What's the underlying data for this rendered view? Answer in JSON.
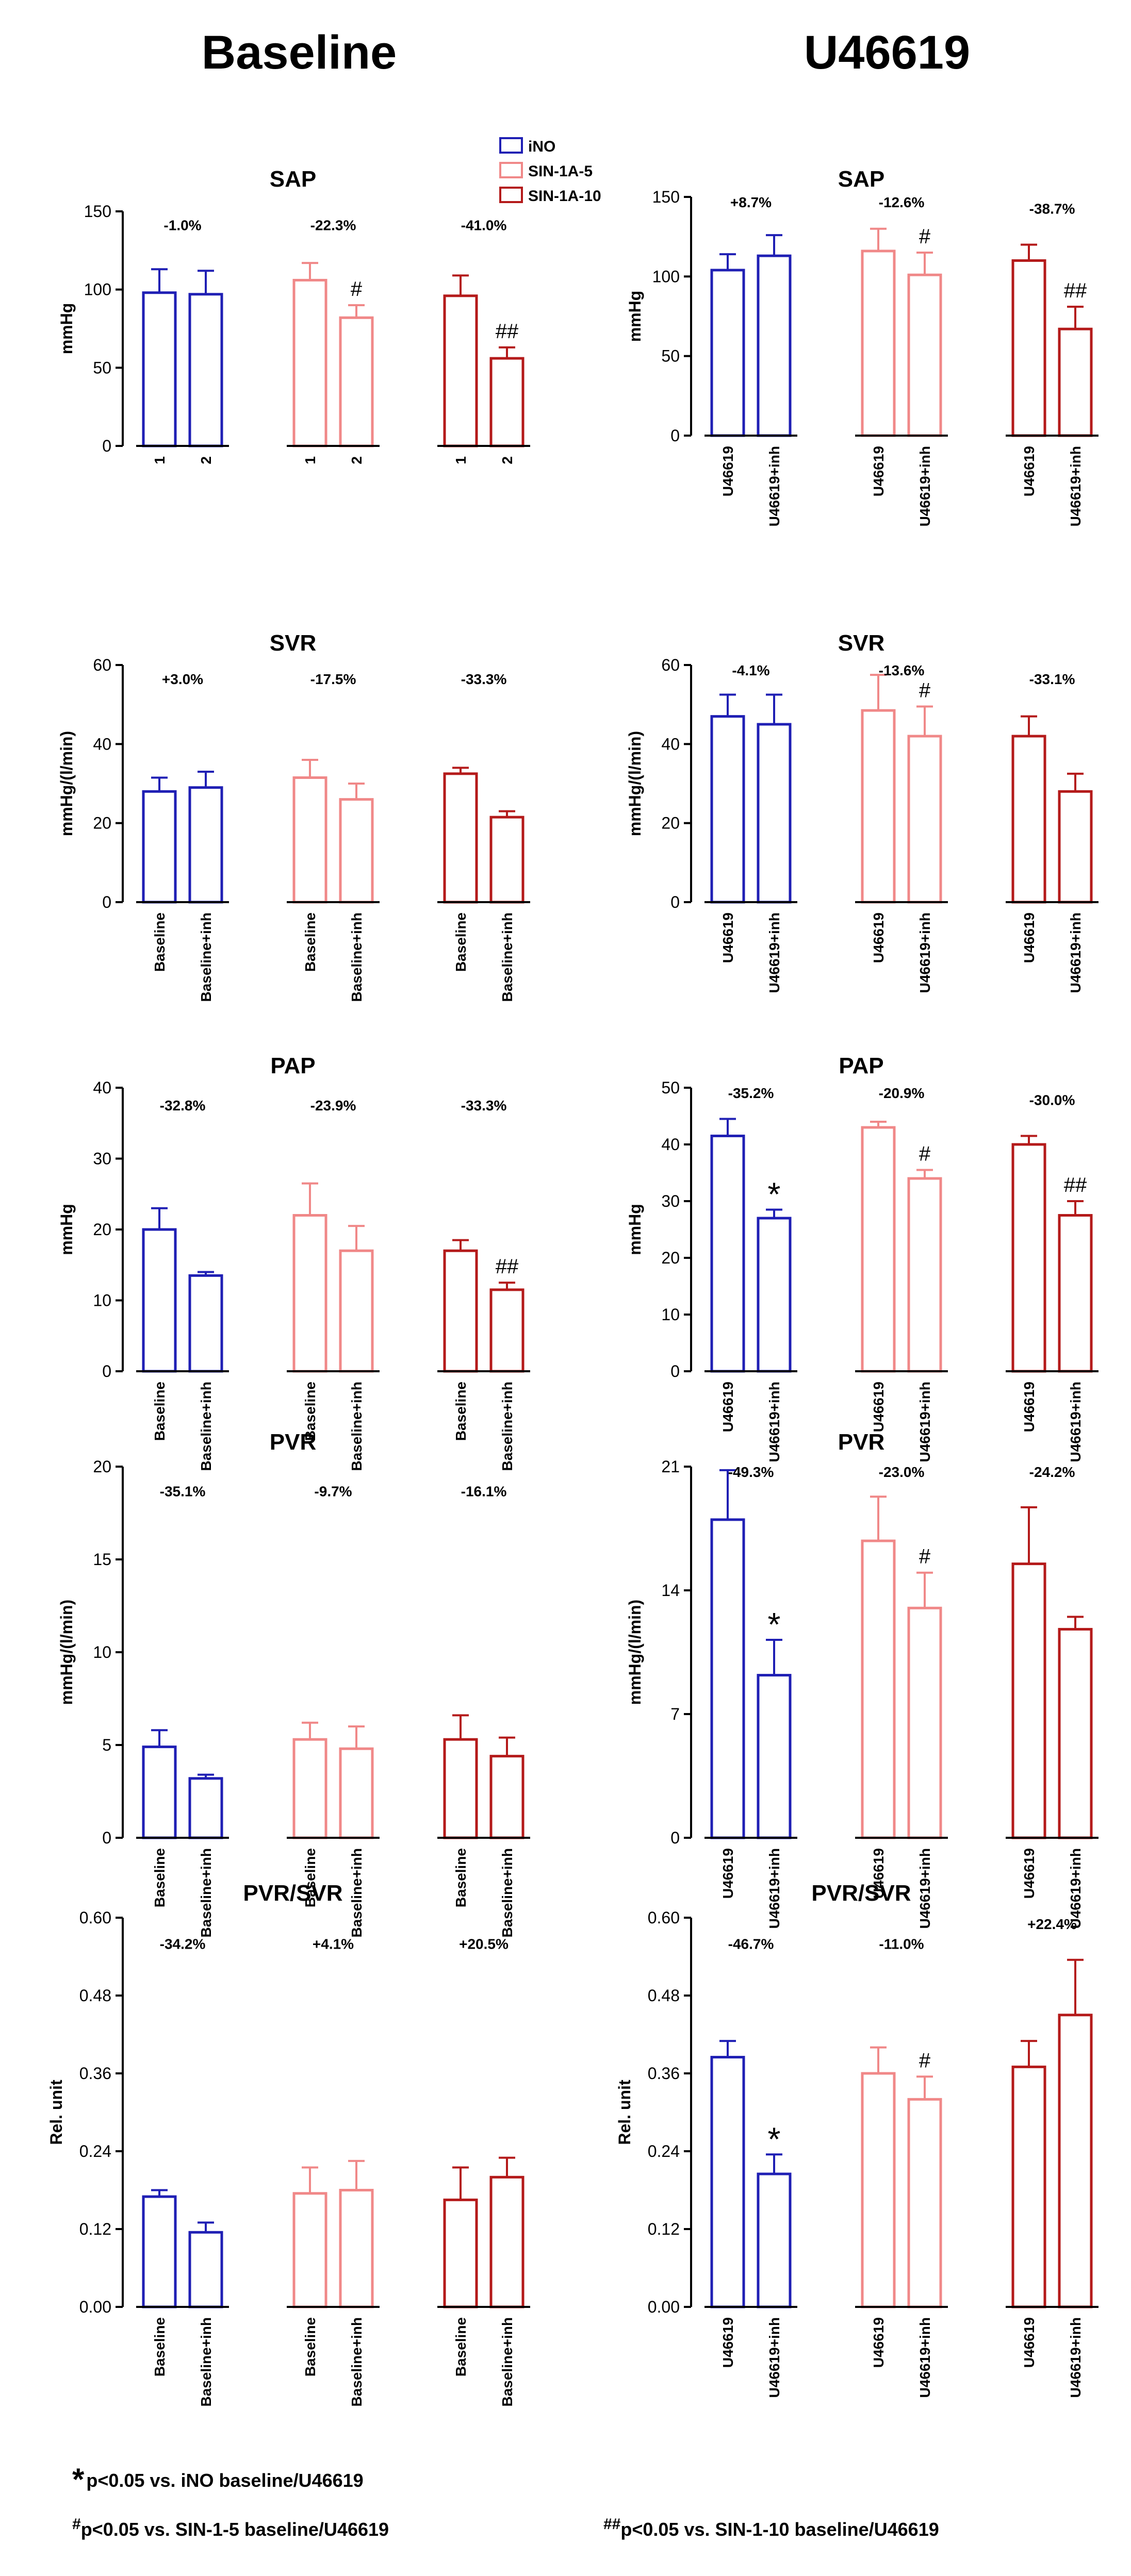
{
  "column_titles": [
    "Baseline",
    "U46619"
  ],
  "legend": [
    {
      "label": "iNO",
      "color": "#1f1fb4"
    },
    {
      "label": "SIN-1A-5",
      "color": "#f08888"
    },
    {
      "label": "SIN-1A-10",
      "color": "#b41a1a"
    }
  ],
  "colors": {
    "ino": "#1f1fb4",
    "sin5": "#f08888",
    "sin10": "#b41a1a"
  },
  "footnotes": {
    "star": {
      "symbol": "*",
      "text": "p<0.05 vs. iNO baseline/U46619"
    },
    "hash": {
      "symbol": "#",
      "text": "p<0.05 vs. SIN-1-5 baseline/U46619"
    },
    "hashhash": {
      "symbol": "##",
      "text": "p<0.05 vs. SIN-1-10 baseline/U46619"
    }
  },
  "chart_data": [
    {
      "type": "bar",
      "column": "Baseline",
      "title": "SAP",
      "ylabel": "mmHg",
      "ylim": [
        0,
        150
      ],
      "yticks": [
        "0",
        "50",
        "100",
        "150"
      ],
      "categories": [
        "1",
        "2",
        "1",
        "2",
        "1",
        "2"
      ],
      "groups": [
        {
          "name": "iNO",
          "values": [
            98,
            97
          ],
          "errors": [
            15,
            15
          ],
          "pct": "-1.0%",
          "marks": [
            "",
            ""
          ]
        },
        {
          "name": "SIN-1A-5",
          "values": [
            106,
            82
          ],
          "errors": [
            11,
            8
          ],
          "pct": "-22.3%",
          "marks": [
            "",
            "#"
          ]
        },
        {
          "name": "SIN-1A-10",
          "values": [
            96,
            56
          ],
          "errors": [
            13,
            7
          ],
          "pct": "-41.0%",
          "marks": [
            "",
            "##"
          ]
        }
      ]
    },
    {
      "type": "bar",
      "column": "U46619",
      "title": "SAP",
      "ylabel": "mmHg",
      "ylim": [
        0,
        150
      ],
      "yticks": [
        "0",
        "50",
        "100",
        "150"
      ],
      "categories": [
        "U46619",
        "U46619+inh",
        "U46619",
        "U46619+inh",
        "U46619",
        "U46619+inh"
      ],
      "groups": [
        {
          "name": "iNO",
          "values": [
            104,
            113
          ],
          "errors": [
            10,
            13
          ],
          "pct": "+8.7%",
          "marks": [
            "",
            ""
          ]
        },
        {
          "name": "SIN-1A-5",
          "values": [
            116,
            101
          ],
          "errors": [
            14,
            14
          ],
          "pct": "-12.6%",
          "marks": [
            "",
            "#"
          ]
        },
        {
          "name": "SIN-1A-10",
          "values": [
            110,
            67
          ],
          "errors": [
            10,
            14
          ],
          "pct": "-38.7%",
          "marks": [
            "",
            "##"
          ]
        }
      ]
    },
    {
      "type": "bar",
      "column": "Baseline",
      "title": "SVR",
      "ylabel": "mmHg/(l/min)",
      "ylim": [
        0,
        60
      ],
      "yticks": [
        "0",
        "20",
        "40",
        "60"
      ],
      "categories": [
        "Baseline",
        "Baseline+inh",
        "Baseline",
        "Baseline+inh",
        "Baseline",
        "Baseline+inh"
      ],
      "groups": [
        {
          "name": "iNO",
          "values": [
            28,
            29
          ],
          "errors": [
            3.5,
            4
          ],
          "pct": "+3.0%",
          "marks": [
            "",
            ""
          ]
        },
        {
          "name": "SIN-1A-5",
          "values": [
            31.5,
            26
          ],
          "errors": [
            4.5,
            4
          ],
          "pct": "-17.5%",
          "marks": [
            "",
            ""
          ]
        },
        {
          "name": "SIN-1A-10",
          "values": [
            32.5,
            21.5
          ],
          "errors": [
            1.5,
            1.5
          ],
          "pct": "-33.3%",
          "marks": [
            "",
            ""
          ]
        }
      ]
    },
    {
      "type": "bar",
      "column": "U46619",
      "title": "SVR",
      "ylabel": "mmHg/(l/min)",
      "ylim": [
        0,
        60
      ],
      "yticks": [
        "0",
        "20",
        "40",
        "60"
      ],
      "categories": [
        "U46619",
        "U46619+inh",
        "U46619",
        "U46619+inh",
        "U46619",
        "U46619+inh"
      ],
      "groups": [
        {
          "name": "iNO",
          "values": [
            47,
            45
          ],
          "errors": [
            5.5,
            7.5
          ],
          "pct": "-4.1%",
          "marks": [
            "",
            ""
          ]
        },
        {
          "name": "SIN-1A-5",
          "values": [
            48.5,
            42
          ],
          "errors": [
            9,
            7.5
          ],
          "pct": "-13.6%",
          "marks": [
            "",
            "#"
          ]
        },
        {
          "name": "SIN-1A-10",
          "values": [
            42,
            28
          ],
          "errors": [
            5,
            4.5
          ],
          "pct": "-33.1%",
          "marks": [
            "",
            ""
          ]
        }
      ]
    },
    {
      "type": "bar",
      "column": "Baseline",
      "title": "PAP",
      "ylabel": "mmHg",
      "ylim": [
        0,
        40
      ],
      "yticks": [
        "0",
        "10",
        "20",
        "30",
        "40"
      ],
      "categories": [
        "Baseline",
        "Baseline+inh",
        "Baseline",
        "Baseline+inh",
        "Baseline",
        "Baseline+inh"
      ],
      "groups": [
        {
          "name": "iNO",
          "values": [
            20,
            13.5
          ],
          "errors": [
            3,
            0.5
          ],
          "pct": "-32.8%",
          "marks": [
            "",
            ""
          ]
        },
        {
          "name": "SIN-1A-5",
          "values": [
            22,
            17
          ],
          "errors": [
            4.5,
            3.5
          ],
          "pct": "-23.9%",
          "marks": [
            "",
            ""
          ]
        },
        {
          "name": "SIN-1A-10",
          "values": [
            17,
            11.5
          ],
          "errors": [
            1.5,
            1
          ],
          "pct": "-33.3%",
          "marks": [
            "",
            "##"
          ]
        }
      ]
    },
    {
      "type": "bar",
      "column": "U46619",
      "title": "PAP",
      "ylabel": "mmHg",
      "ylim": [
        0,
        50
      ],
      "yticks": [
        "0",
        "10",
        "20",
        "30",
        "40",
        "50"
      ],
      "categories": [
        "U46619",
        "U46619+inh",
        "U46619",
        "U46619+inh",
        "U46619",
        "U46619+inh"
      ],
      "groups": [
        {
          "name": "iNO",
          "values": [
            41.5,
            27
          ],
          "errors": [
            3,
            1.5
          ],
          "pct": "-35.2%",
          "marks": [
            "",
            "*"
          ]
        },
        {
          "name": "SIN-1A-5",
          "values": [
            43,
            34
          ],
          "errors": [
            1,
            1.5
          ],
          "pct": "-20.9%",
          "marks": [
            "",
            "#"
          ]
        },
        {
          "name": "SIN-1A-10",
          "values": [
            40,
            27.5
          ],
          "errors": [
            1.5,
            2.5
          ],
          "pct": "-30.0%",
          "marks": [
            "",
            "##"
          ]
        }
      ]
    },
    {
      "type": "bar",
      "column": "Baseline",
      "title": "PVR",
      "ylabel": "mmHg/(l/min)",
      "ylim": [
        0,
        20
      ],
      "yticks": [
        "0",
        "5",
        "10",
        "15",
        "20"
      ],
      "categories": [
        "Baseline",
        "Baseline+inh",
        "Baseline",
        "Baseline+inh",
        "Baseline",
        "Baseline+inh"
      ],
      "groups": [
        {
          "name": "iNO",
          "values": [
            4.9,
            3.2
          ],
          "errors": [
            0.9,
            0.2
          ],
          "pct": "-35.1%",
          "marks": [
            "",
            ""
          ]
        },
        {
          "name": "SIN-1A-5",
          "values": [
            5.3,
            4.8
          ],
          "errors": [
            0.9,
            1.2
          ],
          "pct": "-9.7%",
          "marks": [
            "",
            ""
          ]
        },
        {
          "name": "SIN-1A-10",
          "values": [
            5.3,
            4.4
          ],
          "errors": [
            1.3,
            1
          ],
          "pct": "-16.1%",
          "marks": [
            "",
            ""
          ]
        }
      ]
    },
    {
      "type": "bar",
      "column": "U46619",
      "title": "PVR",
      "ylabel": "mmHg/(l/min)",
      "ylim": [
        0,
        21
      ],
      "yticks": [
        "0",
        "7",
        "14",
        "21"
      ],
      "categories": [
        "U46619",
        "U46619+inh",
        "U46619",
        "U46619+inh",
        "U46619",
        "U46619+inh"
      ],
      "groups": [
        {
          "name": "iNO",
          "values": [
            18,
            9.2
          ],
          "errors": [
            2.8,
            2
          ],
          "pct": "-49.3%",
          "marks": [
            "",
            "*"
          ]
        },
        {
          "name": "SIN-1A-5",
          "values": [
            16.8,
            13
          ],
          "errors": [
            2.5,
            2
          ],
          "pct": "-23.0%",
          "marks": [
            "",
            "#"
          ]
        },
        {
          "name": "SIN-1A-10",
          "values": [
            15.5,
            11.8
          ],
          "errors": [
            3.2,
            0.7
          ],
          "pct": "-24.2%",
          "marks": [
            "",
            ""
          ]
        }
      ]
    },
    {
      "type": "bar",
      "column": "Baseline",
      "title": "PVR/SVR",
      "ylabel": "Rel. unit",
      "ylim": [
        0,
        0.6
      ],
      "yticks": [
        "0.00",
        "0.12",
        "0.24",
        "0.36",
        "0.48",
        "0.60"
      ],
      "categories": [
        "Baseline",
        "Baseline+inh",
        "Baseline",
        "Baseline+inh",
        "Baseline",
        "Baseline+inh"
      ],
      "groups": [
        {
          "name": "iNO",
          "values": [
            0.17,
            0.115
          ],
          "errors": [
            0.01,
            0.015
          ],
          "pct": "-34.2%",
          "marks": [
            "",
            ""
          ]
        },
        {
          "name": "SIN-1A-5",
          "values": [
            0.175,
            0.18
          ],
          "errors": [
            0.04,
            0.045
          ],
          "pct": "+4.1%",
          "marks": [
            "",
            ""
          ]
        },
        {
          "name": "SIN-1A-10",
          "values": [
            0.165,
            0.2
          ],
          "errors": [
            0.05,
            0.03
          ],
          "pct": "+20.5%",
          "marks": [
            "",
            ""
          ]
        }
      ]
    },
    {
      "type": "bar",
      "column": "U46619",
      "title": "PVR/SVR",
      "ylabel": "Rel. unit",
      "ylim": [
        0,
        0.6
      ],
      "yticks": [
        "0.00",
        "0.12",
        "0.24",
        "0.36",
        "0.48",
        "0.60"
      ],
      "categories": [
        "U46619",
        "U46619+inh",
        "U46619",
        "U46619+inh",
        "U46619",
        "U46619+inh"
      ],
      "groups": [
        {
          "name": "iNO",
          "values": [
            0.385,
            0.205
          ],
          "errors": [
            0.025,
            0.03
          ],
          "pct": "-46.7%",
          "marks": [
            "",
            "*"
          ]
        },
        {
          "name": "SIN-1A-5",
          "values": [
            0.36,
            0.32
          ],
          "errors": [
            0.04,
            0.035
          ],
          "pct": "-11.0%",
          "marks": [
            "",
            "#"
          ]
        },
        {
          "name": "SIN-1A-10",
          "values": [
            0.37,
            0.45
          ],
          "errors": [
            0.04,
            0.085
          ],
          "pct": "+22.4%",
          "marks": [
            "",
            ""
          ]
        }
      ]
    }
  ]
}
